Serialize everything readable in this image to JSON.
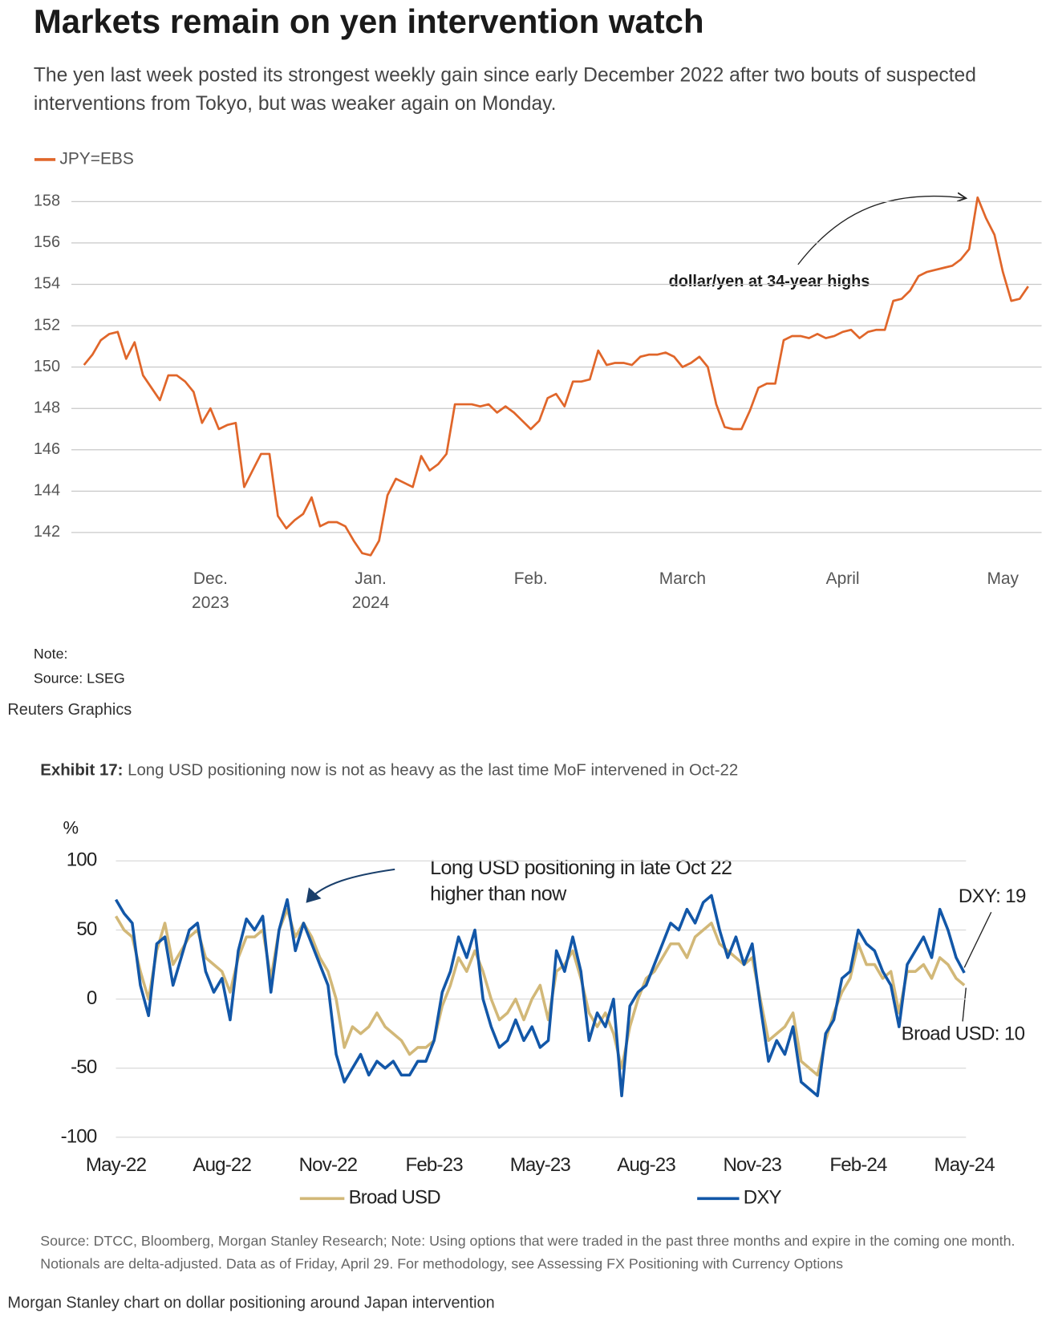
{
  "chart_data": [
    {
      "type": "line",
      "title": "Markets remain on yen intervention watch",
      "subtitle": "The yen last week posted its strongest weekly gain since early December 2022 after two bouts of suspected interventions from Tokyo, but was weaker again on Monday.",
      "annotation": "dollar/yen at 34-year highs",
      "note": "Note:",
      "source": "Source: LSEG",
      "credit": "Reuters Graphics",
      "categories": [
        null,
        null,
        null,
        null,
        null,
        null,
        null,
        null,
        null,
        null,
        null,
        null,
        null,
        null,
        null,
        "Dec.\n2023",
        null,
        null,
        null,
        null,
        null,
        null,
        null,
        null,
        null,
        null,
        null,
        null,
        null,
        null,
        null,
        null,
        null,
        null,
        "Jan.\n2024",
        null,
        null,
        null,
        null,
        null,
        null,
        null,
        null,
        null,
        null,
        null,
        null,
        null,
        null,
        null,
        null,
        null,
        null,
        "Feb.",
        null,
        null,
        null,
        null,
        null,
        null,
        null,
        null,
        null,
        null,
        null,
        null,
        null,
        null,
        null,
        null,
        null,
        "March",
        null,
        null,
        null,
        null,
        null,
        null,
        null,
        null,
        null,
        null,
        null,
        null,
        null,
        null,
        null,
        null,
        null,
        null,
        "April",
        null,
        null,
        null,
        null,
        null,
        null,
        null,
        null,
        null,
        null,
        null,
        null,
        null,
        null,
        null,
        null,
        null,
        null,
        "May",
        null,
        null,
        null
      ],
      "series": [
        {
          "name": "JPY=EBS",
          "color": "#e0662a",
          "values": [
            150.1,
            150.6,
            151.3,
            151.6,
            151.7,
            150.4,
            151.2,
            149.6,
            149.0,
            148.4,
            149.6,
            149.6,
            149.3,
            148.8,
            147.3,
            148.0,
            147.0,
            147.2,
            147.3,
            144.2,
            145.0,
            145.8,
            145.8,
            142.8,
            142.2,
            142.6,
            142.9,
            143.7,
            142.3,
            142.5,
            142.5,
            142.3,
            141.6,
            141.0,
            140.9,
            141.6,
            143.8,
            144.6,
            144.4,
            144.2,
            145.7,
            145.0,
            145.3,
            145.8,
            148.2,
            148.2,
            148.2,
            148.1,
            148.2,
            147.8,
            148.1,
            147.8,
            147.4,
            147.0,
            147.4,
            148.5,
            148.7,
            148.1,
            149.3,
            149.3,
            149.4,
            150.8,
            150.1,
            150.2,
            150.2,
            150.1,
            150.5,
            150.6,
            150.6,
            150.7,
            150.5,
            150.0,
            150.2,
            150.5,
            150.0,
            148.2,
            147.1,
            147.0,
            147.0,
            147.9,
            149.0,
            149.2,
            149.2,
            151.3,
            151.5,
            151.5,
            151.4,
            151.6,
            151.4,
            151.5,
            151.7,
            151.8,
            151.4,
            151.7,
            151.8,
            151.8,
            153.2,
            153.3,
            153.7,
            154.4,
            154.6,
            154.7,
            154.8,
            154.9,
            155.2,
            155.7,
            158.2,
            157.2,
            156.4,
            154.6,
            153.2,
            153.3,
            153.9
          ]
        }
      ],
      "ylim": [
        140,
        159
      ],
      "yticks": [
        142,
        144,
        146,
        148,
        150,
        152,
        154,
        156,
        158
      ],
      "grid": true
    },
    {
      "type": "line",
      "exhibit": "Exhibit 17:",
      "title": "Long USD positioning now is not as heavy as the last time MoF intervened in Oct-22",
      "y_label": "%",
      "annotations": [
        "Long USD positioning in late Oct 22\nhigher than now",
        "DXY: 19",
        "Broad USD: 10"
      ],
      "source": "Source: DTCC, Bloomberg, Morgan Stanley Research; Note: Using options that were traded in the past three months and expire in the coming one month. Notionals are delta-adjusted. Data as of Friday, April 29. For methodology, see Assessing FX Positioning with Currency Options",
      "credit": "Morgan Stanley chart on dollar positioning around Japan intervention",
      "categories": [
        "May-22",
        null,
        null,
        null,
        null,
        null,
        null,
        null,
        null,
        null,
        null,
        null,
        null,
        "Aug-22",
        null,
        null,
        null,
        null,
        null,
        null,
        null,
        null,
        null,
        null,
        null,
        null,
        "Nov-22",
        null,
        null,
        null,
        null,
        null,
        null,
        null,
        null,
        null,
        null,
        null,
        null,
        "Feb-23",
        null,
        null,
        null,
        null,
        null,
        null,
        null,
        null,
        null,
        null,
        null,
        null,
        "May-23",
        null,
        null,
        null,
        null,
        null,
        null,
        null,
        null,
        null,
        null,
        null,
        null,
        "Aug-23",
        null,
        null,
        null,
        null,
        null,
        null,
        null,
        null,
        null,
        null,
        null,
        null,
        "Nov-23",
        null,
        null,
        null,
        null,
        null,
        null,
        null,
        null,
        null,
        null,
        null,
        null,
        "Feb-24",
        null,
        null,
        null,
        null,
        null,
        null,
        null,
        null,
        null,
        null,
        null,
        null,
        "May-24"
      ],
      "series": [
        {
          "name": "Broad USD",
          "color": "#d2b878",
          "values": [
            60,
            50,
            45,
            20,
            0,
            35,
            55,
            25,
            35,
            45,
            50,
            30,
            25,
            20,
            5,
            30,
            45,
            45,
            50,
            15,
            50,
            65,
            45,
            55,
            45,
            30,
            20,
            0,
            -35,
            -20,
            -25,
            -20,
            -10,
            -20,
            -25,
            -30,
            -40,
            -35,
            -35,
            -30,
            -5,
            10,
            30,
            20,
            35,
            20,
            0,
            -15,
            -10,
            0,
            -15,
            0,
            10,
            -15,
            20,
            25,
            35,
            15,
            -10,
            -20,
            -10,
            -25,
            -50,
            -20,
            0,
            15,
            20,
            30,
            40,
            40,
            30,
            45,
            50,
            55,
            40,
            35,
            30,
            25,
            30,
            0,
            -30,
            -25,
            -20,
            -10,
            -45,
            -50,
            -55,
            -30,
            -10,
            5,
            15,
            40,
            25,
            25,
            15,
            20,
            -10,
            20,
            20,
            25,
            15,
            30,
            25,
            15,
            10
          ]
        },
        {
          "name": "DXY",
          "color": "#1257a8",
          "values": [
            72,
            62,
            55,
            10,
            -12,
            40,
            45,
            10,
            30,
            50,
            55,
            20,
            5,
            15,
            -15,
            35,
            58,
            50,
            60,
            5,
            50,
            72,
            35,
            55,
            40,
            25,
            10,
            -40,
            -60,
            -50,
            -40,
            -55,
            -45,
            -50,
            -45,
            -55,
            -55,
            -45,
            -45,
            -30,
            5,
            20,
            45,
            30,
            50,
            0,
            -20,
            -35,
            -30,
            -15,
            -30,
            -20,
            -35,
            -30,
            35,
            20,
            45,
            20,
            -30,
            -10,
            -20,
            0,
            -70,
            -5,
            5,
            10,
            25,
            40,
            55,
            50,
            65,
            55,
            70,
            75,
            50,
            30,
            45,
            25,
            40,
            -5,
            -45,
            -30,
            -40,
            -20,
            -60,
            -65,
            -70,
            -25,
            -15,
            15,
            20,
            50,
            40,
            35,
            20,
            10,
            -20,
            25,
            35,
            45,
            30,
            65,
            50,
            30,
            19
          ]
        }
      ],
      "ylim": [
        -100,
        100
      ],
      "yticks": [
        -100,
        -50,
        0,
        50,
        100
      ],
      "grid": true
    }
  ]
}
